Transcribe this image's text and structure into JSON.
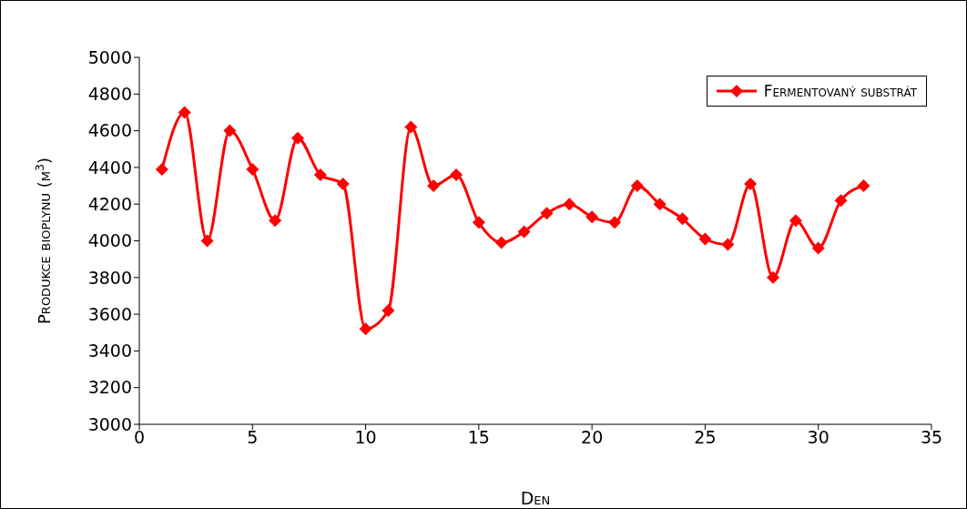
{
  "chart_data": {
    "type": "line",
    "xlabel": "Den",
    "ylabel": "Produkce bioplynu (m$^{3}$)",
    "x": [
      1,
      2,
      3,
      4,
      5,
      6,
      7,
      8,
      9,
      10,
      11,
      12,
      13,
      14,
      15,
      16,
      17,
      18,
      19,
      20,
      21,
      22,
      23,
      24,
      25,
      26,
      27,
      28,
      29,
      30,
      31,
      32
    ],
    "series": [
      {
        "name": "Fermentovaný substrát",
        "color": "#ff0000",
        "values": [
          4390,
          4700,
          4000,
          4600,
          4390,
          4110,
          4560,
          4360,
          4310,
          3520,
          3620,
          4620,
          4300,
          4360,
          4100,
          3990,
          4050,
          4150,
          4200,
          4130,
          4100,
          4300,
          4200,
          4120,
          4010,
          3980,
          4310,
          3800,
          4110,
          3960,
          4220,
          4300
        ]
      }
    ],
    "xlim": [
      0,
      35
    ],
    "xticks": [
      0,
      5,
      10,
      15,
      20,
      25,
      30,
      35
    ],
    "ylim": [
      3000,
      5000
    ],
    "yticks": [
      3000,
      3200,
      3400,
      3600,
      3800,
      4000,
      4200,
      4400,
      4600,
      4800,
      5000
    ],
    "legend": "top right",
    "marker": "diamond",
    "line_style": "solid"
  }
}
